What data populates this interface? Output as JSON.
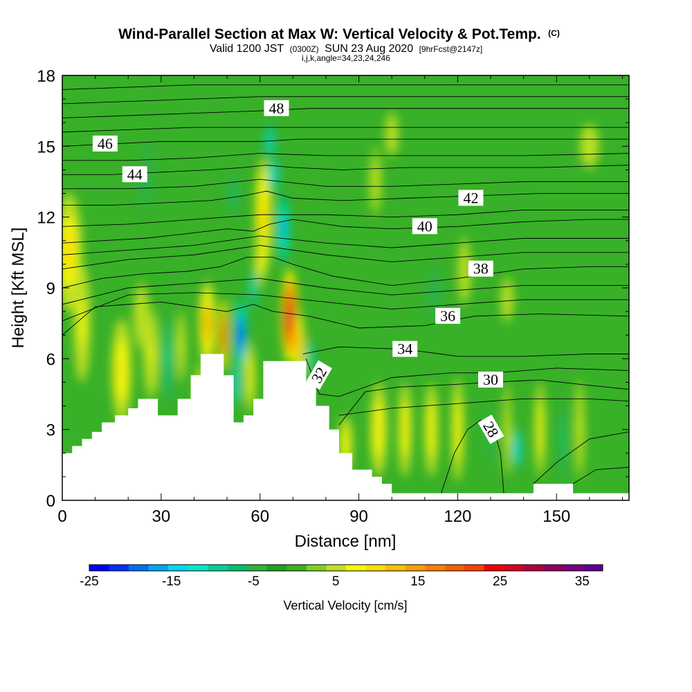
{
  "chart_data": {
    "type": "heatmap",
    "title": "Wind-Parallel Section at Max W: Vertical Velocity & Pot.Temp.",
    "title_suffix": "(C)",
    "subtitle_main_a": "Valid 1200 JST",
    "subtitle_main_zulu": "(0300Z)",
    "subtitle_main_b": "SUN 23 Aug 2020",
    "subtitle_forecast": "[9hrFcst@2147z]",
    "subtitle_indices": "i,j,k,angle=34,23,24,246",
    "xlabel": "Distance [nm]",
    "ylabel": "Height [Kft MSL]",
    "xlim": [
      0,
      172
    ],
    "ylim": [
      0,
      18
    ],
    "x_ticks": [
      "0",
      "30",
      "60",
      "90",
      "120",
      "150"
    ],
    "x_tick_values": [
      0,
      30,
      60,
      90,
      120,
      150
    ],
    "y_ticks": [
      "0",
      "3",
      "6",
      "9",
      "12",
      "15",
      "18"
    ],
    "y_tick_values": [
      0,
      3,
      6,
      9,
      12,
      15,
      18
    ],
    "colorbar": {
      "label": "Vertical Velocity [cm/s]",
      "min": -25,
      "max": 37.5,
      "tick_labels": [
        "-25",
        "-15",
        "-5",
        "5",
        "15",
        "25",
        "35"
      ],
      "tick_values": [
        -25,
        -15,
        -5,
        5,
        15,
        25,
        35
      ],
      "colors": [
        "#0000ff",
        "#0030ff",
        "#0070f0",
        "#00a8f0",
        "#00d8f0",
        "#00e8c8",
        "#00d098",
        "#00c070",
        "#30b040",
        "#20a020",
        "#40b020",
        "#80d020",
        "#c0e020",
        "#f8f800",
        "#f8e000",
        "#f8c000",
        "#f8a000",
        "#f88000",
        "#f86000",
        "#f84000",
        "#f00000",
        "#d80020",
        "#b00040",
        "#900060",
        "#780080",
        "#5c0090"
      ]
    },
    "terrain": [
      [
        0,
        2.0
      ],
      [
        3,
        2.0
      ],
      [
        3,
        2.3
      ],
      [
        6,
        2.3
      ],
      [
        6,
        2.6
      ],
      [
        9,
        2.6
      ],
      [
        9,
        2.9
      ],
      [
        12,
        2.9
      ],
      [
        12,
        3.3
      ],
      [
        16,
        3.3
      ],
      [
        16,
        3.6
      ],
      [
        20,
        3.6
      ],
      [
        20,
        3.9
      ],
      [
        23,
        3.9
      ],
      [
        23,
        4.3
      ],
      [
        29,
        4.3
      ],
      [
        29,
        3.6
      ],
      [
        35,
        3.6
      ],
      [
        35,
        4.3
      ],
      [
        39,
        4.3
      ],
      [
        39,
        5.3
      ],
      [
        42,
        5.3
      ],
      [
        42,
        6.2
      ],
      [
        49,
        6.2
      ],
      [
        49,
        5.3
      ],
      [
        52,
        5.3
      ],
      [
        52,
        3.3
      ],
      [
        55,
        3.3
      ],
      [
        55,
        3.6
      ],
      [
        58,
        3.6
      ],
      [
        58,
        4.3
      ],
      [
        61,
        4.3
      ],
      [
        61,
        5.9
      ],
      [
        74,
        5.9
      ],
      [
        74,
        5.0
      ],
      [
        77,
        5.0
      ],
      [
        77,
        4.0
      ],
      [
        81,
        4.0
      ],
      [
        81,
        3.0
      ],
      [
        84,
        3.0
      ],
      [
        84,
        2.0
      ],
      [
        88,
        2.0
      ],
      [
        88,
        1.3
      ],
      [
        94,
        1.3
      ],
      [
        94,
        1.0
      ],
      [
        97,
        1.0
      ],
      [
        97,
        0.7
      ],
      [
        100,
        0.7
      ],
      [
        100,
        0.3
      ],
      [
        143,
        0.3
      ],
      [
        143,
        0.7
      ],
      [
        155,
        0.7
      ],
      [
        155,
        0.3
      ],
      [
        172,
        0.3
      ]
    ],
    "theta_contours": [
      {
        "label": "28",
        "label_pos": [
          130,
          3.0
        ],
        "label_angle": 60,
        "points": [
          [
            115,
            0.3
          ],
          [
            119,
            2.0
          ],
          [
            123,
            3.0
          ],
          [
            127,
            3.4
          ],
          [
            131,
            3.0
          ],
          [
            133,
            2.0
          ],
          [
            134,
            0.3
          ]
        ]
      },
      {
        "label": "30",
        "label_pos": [
          130,
          5.1
        ],
        "label_angle": 0,
        "points": [
          [
            84,
            3.2
          ],
          [
            92,
            4.6
          ],
          [
            102,
            4.8
          ],
          [
            118,
            4.9
          ],
          [
            130,
            5.0
          ],
          [
            145,
            5.1
          ],
          [
            158,
            4.9
          ],
          [
            172,
            4.7
          ]
        ]
      },
      {
        "label": "32",
        "label_pos": [
          78,
          5.3
        ],
        "label_angle": -60,
        "points": [
          [
            74,
            6.0
          ],
          [
            78,
            4.5
          ],
          [
            84,
            4.4
          ],
          [
            100,
            5.2
          ],
          [
            118,
            5.4
          ],
          [
            131,
            5.4
          ],
          [
            150,
            5.6
          ],
          [
            172,
            5.5
          ]
        ]
      },
      {
        "label": "34",
        "label_pos": [
          104,
          6.4
        ],
        "label_angle": 0,
        "points": [
          [
            73,
            6.2
          ],
          [
            84,
            6.5
          ],
          [
            104,
            6.4
          ],
          [
            120,
            6.1
          ],
          [
            140,
            6.1
          ],
          [
            160,
            6.2
          ],
          [
            172,
            6.2
          ]
        ]
      },
      {
        "label": "36",
        "label_pos": [
          117,
          7.8
        ],
        "label_angle": 0,
        "points": [
          [
            0,
            7.0
          ],
          [
            10,
            8.2
          ],
          [
            20,
            8.3
          ],
          [
            30,
            8.4
          ],
          [
            40,
            8.2
          ],
          [
            50,
            8.0
          ],
          [
            58,
            8.3
          ],
          [
            64,
            8.0
          ],
          [
            75,
            7.8
          ],
          [
            90,
            7.3
          ],
          [
            110,
            7.4
          ],
          [
            125,
            7.8
          ],
          [
            145,
            7.9
          ],
          [
            172,
            7.8
          ]
        ]
      },
      {
        "label": "38",
        "label_pos": [
          127,
          9.8
        ],
        "label_angle": 0,
        "points": [
          [
            0,
            9.0
          ],
          [
            12,
            9.4
          ],
          [
            25,
            9.6
          ],
          [
            38,
            9.7
          ],
          [
            48,
            9.9
          ],
          [
            56,
            10.3
          ],
          [
            64,
            10.3
          ],
          [
            70,
            10.0
          ],
          [
            82,
            9.5
          ],
          [
            100,
            9.1
          ],
          [
            120,
            9.4
          ],
          [
            140,
            9.8
          ],
          [
            160,
            9.9
          ],
          [
            172,
            9.9
          ]
        ]
      },
      {
        "label": "40",
        "label_pos": [
          110,
          11.6
        ],
        "label_angle": 0,
        "points": [
          [
            0,
            10.9
          ],
          [
            12,
            11.0
          ],
          [
            25,
            11.1
          ],
          [
            38,
            11.3
          ],
          [
            50,
            11.5
          ],
          [
            58,
            11.4
          ],
          [
            63,
            11.7
          ],
          [
            70,
            11.9
          ],
          [
            85,
            11.6
          ],
          [
            100,
            11.5
          ],
          [
            120,
            11.6
          ],
          [
            140,
            11.8
          ],
          [
            160,
            11.9
          ],
          [
            172,
            11.9
          ]
        ]
      },
      {
        "label": "42",
        "label_pos": [
          124,
          12.8
        ],
        "label_angle": 0,
        "points": [
          [
            0,
            12.5
          ],
          [
            15,
            12.5
          ],
          [
            30,
            12.6
          ],
          [
            45,
            12.7
          ],
          [
            55,
            12.9
          ],
          [
            62,
            13.1
          ],
          [
            70,
            12.8
          ],
          [
            85,
            12.7
          ],
          [
            105,
            12.8
          ],
          [
            125,
            12.9
          ],
          [
            145,
            13.0
          ],
          [
            172,
            13.0
          ]
        ]
      },
      {
        "label": "44",
        "label_pos": [
          22,
          13.8
        ],
        "label_angle": 0,
        "points": [
          [
            0,
            13.8
          ],
          [
            15,
            13.8
          ],
          [
            30,
            13.9
          ],
          [
            45,
            14.0
          ],
          [
            55,
            14.1
          ],
          [
            62,
            14.2
          ],
          [
            70,
            14.1
          ],
          [
            85,
            14.0
          ],
          [
            105,
            14.1
          ],
          [
            125,
            14.1
          ],
          [
            145,
            14.1
          ],
          [
            172,
            14.2
          ]
        ]
      },
      {
        "label": "46",
        "label_pos": [
          13,
          15.1
        ],
        "label_angle": 0,
        "points": [
          [
            0,
            15.0
          ],
          [
            15,
            15.1
          ],
          [
            30,
            15.2
          ],
          [
            45,
            15.2
          ],
          [
            60,
            15.2
          ],
          [
            72,
            15.3
          ],
          [
            90,
            15.3
          ],
          [
            110,
            15.3
          ],
          [
            130,
            15.3
          ],
          [
            150,
            15.3
          ],
          [
            172,
            15.3
          ]
        ]
      },
      {
        "label": "48",
        "label_pos": [
          65,
          16.6
        ],
        "label_angle": 0,
        "points": [
          [
            0,
            16.2
          ],
          [
            20,
            16.3
          ],
          [
            40,
            16.4
          ],
          [
            60,
            16.5
          ],
          [
            75,
            16.6
          ],
          [
            95,
            16.6
          ],
          [
            115,
            16.6
          ],
          [
            135,
            16.6
          ],
          [
            155,
            16.6
          ],
          [
            172,
            16.6
          ]
        ]
      }
    ],
    "extra_theta_lines": [
      [
        [
          0,
          7.6
        ],
        [
          20,
          8.7
        ],
        [
          40,
          8.8
        ],
        [
          60,
          8.7
        ],
        [
          80,
          8.4
        ],
        [
          100,
          8.1
        ],
        [
          120,
          8.3
        ],
        [
          140,
          8.5
        ],
        [
          172,
          8.5
        ]
      ],
      [
        [
          0,
          8.3
        ],
        [
          20,
          9.0
        ],
        [
          40,
          9.2
        ],
        [
          60,
          9.4
        ],
        [
          80,
          9.0
        ],
        [
          100,
          8.7
        ],
        [
          120,
          8.9
        ],
        [
          140,
          9.1
        ],
        [
          172,
          9.1
        ]
      ],
      [
        [
          0,
          9.8
        ],
        [
          20,
          10.2
        ],
        [
          40,
          10.4
        ],
        [
          60,
          10.8
        ],
        [
          80,
          10.4
        ],
        [
          100,
          10.1
        ],
        [
          120,
          10.3
        ],
        [
          140,
          10.5
        ],
        [
          172,
          10.5
        ]
      ],
      [
        [
          0,
          10.4
        ],
        [
          20,
          10.6
        ],
        [
          40,
          10.8
        ],
        [
          60,
          11.2
        ],
        [
          80,
          10.9
        ],
        [
          100,
          10.7
        ],
        [
          120,
          10.9
        ],
        [
          140,
          11.1
        ],
        [
          172,
          11.1
        ]
      ],
      [
        [
          0,
          11.6
        ],
        [
          20,
          11.7
        ],
        [
          40,
          11.9
        ],
        [
          60,
          12.1
        ],
        [
          80,
          12.1
        ],
        [
          100,
          12.0
        ],
        [
          120,
          12.1
        ],
        [
          140,
          12.3
        ],
        [
          172,
          12.3
        ]
      ],
      [
        [
          0,
          13.2
        ],
        [
          20,
          13.2
        ],
        [
          40,
          13.3
        ],
        [
          60,
          13.6
        ],
        [
          80,
          13.3
        ],
        [
          100,
          13.3
        ],
        [
          120,
          13.4
        ],
        [
          140,
          13.5
        ],
        [
          172,
          13.5
        ]
      ],
      [
        [
          0,
          14.4
        ],
        [
          20,
          14.4
        ],
        [
          40,
          14.5
        ],
        [
          60,
          14.7
        ],
        [
          80,
          14.6
        ],
        [
          100,
          14.6
        ],
        [
          120,
          14.6
        ],
        [
          140,
          14.6
        ],
        [
          172,
          14.7
        ]
      ],
      [
        [
          0,
          15.6
        ],
        [
          20,
          15.7
        ],
        [
          40,
          15.8
        ],
        [
          60,
          15.8
        ],
        [
          80,
          15.8
        ],
        [
          100,
          15.8
        ],
        [
          120,
          15.8
        ],
        [
          140,
          15.8
        ],
        [
          172,
          15.8
        ]
      ],
      [
        [
          0,
          16.8
        ],
        [
          20,
          16.9
        ],
        [
          40,
          17.0
        ],
        [
          60,
          17.1
        ],
        [
          80,
          17.1
        ],
        [
          100,
          17.1
        ],
        [
          120,
          17.1
        ],
        [
          140,
          17.1
        ],
        [
          172,
          17.1
        ]
      ],
      [
        [
          0,
          17.4
        ],
        [
          20,
          17.5
        ],
        [
          40,
          17.6
        ],
        [
          60,
          17.6
        ],
        [
          80,
          17.6
        ],
        [
          100,
          17.6
        ],
        [
          120,
          17.6
        ],
        [
          140,
          17.6
        ],
        [
          172,
          17.6
        ]
      ],
      [
        [
          84,
          3.6
        ],
        [
          100,
          3.9
        ],
        [
          120,
          4.1
        ],
        [
          140,
          4.3
        ],
        [
          160,
          4.3
        ],
        [
          172,
          4.2
        ]
      ],
      [
        [
          143,
          0.7
        ],
        [
          150,
          1.6
        ],
        [
          160,
          2.6
        ],
        [
          172,
          2.9
        ]
      ],
      [
        [
          155,
          0.7
        ],
        [
          162,
          1.3
        ],
        [
          172,
          1.4
        ]
      ]
    ]
  }
}
